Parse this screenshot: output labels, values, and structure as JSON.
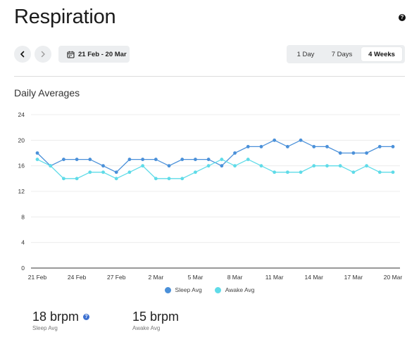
{
  "page": {
    "title": "Respiration"
  },
  "toolbar": {
    "date_range": "21 Feb - 20 Mar"
  },
  "range_tabs": [
    {
      "label": "1 Day",
      "active": false
    },
    {
      "label": "7 Days",
      "active": false
    },
    {
      "label": "4 Weeks",
      "active": true
    }
  ],
  "section": {
    "title": "Daily Averages"
  },
  "colors": {
    "sleep": "#4a90d9",
    "awake": "#5fdbe8",
    "accent": "#3b6fd0"
  },
  "icons": {
    "help": "question-circle-icon",
    "prev": "chevron-left-icon",
    "next": "chevron-right-icon",
    "calendar": "calendar-icon",
    "info": "question-circle-icon"
  },
  "chart_data": {
    "type": "line",
    "title": "Daily Averages",
    "xlabel": "",
    "ylabel": "",
    "ylim": [
      0,
      24
    ],
    "yticks": [
      0,
      4,
      8,
      12,
      16,
      20,
      24
    ],
    "x": [
      "21 Feb",
      "22 Feb",
      "23 Feb",
      "24 Feb",
      "25 Feb",
      "26 Feb",
      "27 Feb",
      "28 Feb",
      "1 Mar",
      "2 Mar",
      "3 Mar",
      "4 Mar",
      "5 Mar",
      "6 Mar",
      "7 Mar",
      "8 Mar",
      "9 Mar",
      "10 Mar",
      "11 Mar",
      "12 Mar",
      "13 Mar",
      "14 Mar",
      "15 Mar",
      "16 Mar",
      "17 Mar",
      "18 Mar",
      "19 Mar",
      "20 Mar"
    ],
    "xticks": [
      "21 Feb",
      "24 Feb",
      "27 Feb",
      "2 Mar",
      "5 Mar",
      "8 Mar",
      "11 Mar",
      "14 Mar",
      "17 Mar",
      "20 Mar"
    ],
    "grid": true,
    "legend": "bottom",
    "series": [
      {
        "name": "Sleep Avg",
        "values": [
          18,
          16,
          17,
          17,
          17,
          16,
          15,
          17,
          17,
          17,
          16,
          17,
          17,
          17,
          16,
          18,
          19,
          19,
          20,
          19,
          20,
          19,
          19,
          18,
          18,
          18,
          19,
          19
        ]
      },
      {
        "name": "Awake Avg",
        "values": [
          17,
          16,
          14,
          14,
          15,
          15,
          14,
          15,
          16,
          14,
          14,
          14,
          15,
          16,
          17,
          16,
          17,
          16,
          15,
          15,
          15,
          16,
          16,
          16,
          15,
          16,
          15,
          15
        ]
      }
    ]
  },
  "legend": {
    "sleep_label": "Sleep Avg",
    "awake_label": "Awake Avg"
  },
  "stats": [
    {
      "value": "18 brpm",
      "label": "Sleep Avg"
    },
    {
      "value": "15 brpm",
      "label": "Awake Avg"
    }
  ]
}
